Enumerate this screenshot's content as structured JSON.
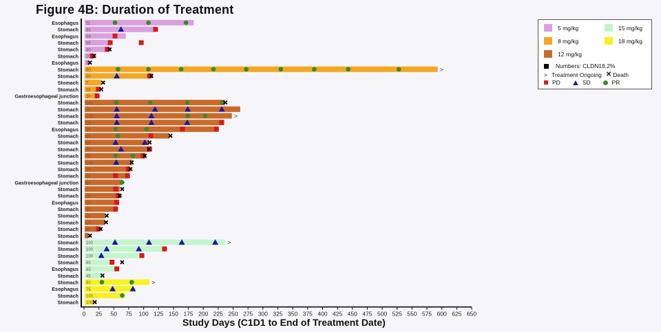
{
  "title": "Figure 4B: Duration of Treatment",
  "legend": {
    "dose_5": {
      "label": "5 mg/kg",
      "color": "#d9a0e0"
    },
    "dose_8": {
      "label": "8 mg/kg",
      "color": "#f5a623"
    },
    "dose_12": {
      "label": "12 mg/kg",
      "color": "#c96a2a"
    },
    "dose_15": {
      "label": "15 mg/kg",
      "color": "#c4f5cc"
    },
    "dose_18": {
      "label": "18 mg/kg",
      "color": "#f7f21f"
    },
    "numbers": "Numbers: CLDN18.2%",
    "ongoing": "Treatment Ongoing",
    "death": "Death",
    "pd": "PD",
    "sd": "SD",
    "pr": "PR",
    "ongoing_symbol": ">",
    "pd_color": "#d7191c",
    "sd_color": "#1a1aa6",
    "pr_color": "#3a8a2a"
  },
  "chart_data": {
    "type": "bar",
    "title": "Figure 4B: Duration of Treatment",
    "xlabel": "Study Days (C1D1 to End of Treatment Date)",
    "ylabel": "",
    "xlim": [
      0,
      650
    ],
    "xticks": [
      0,
      25,
      50,
      75,
      100,
      125,
      150,
      175,
      200,
      225,
      250,
      275,
      300,
      325,
      350,
      375,
      400,
      425,
      450,
      475,
      500,
      525,
      550,
      575,
      600,
      625,
      650
    ],
    "orientation": "horizontal swimmer plot",
    "legend_position": "upper right",
    "grid": false,
    "rows": [
      {
        "site": "Esophagus",
        "cldn": "11",
        "dose": "5",
        "end": 184,
        "ongoing": false,
        "pr": [
          52,
          108,
          171
        ],
        "sd": [],
        "pd": [],
        "death": null
      },
      {
        "site": "Stomach",
        "cldn": "95",
        "dose": "5",
        "end": 121,
        "ongoing": false,
        "pr": [],
        "sd": [
          62
        ],
        "pd": [
          120
        ],
        "death": null
      },
      {
        "site": "Esophagus",
        "cldn": "99",
        "dose": "5",
        "end": 70,
        "ongoing": false,
        "pr": [],
        "sd": [],
        "pd": [
          52
        ],
        "death": null
      },
      {
        "site": "Stomach",
        "cldn": "55",
        "dose": "5",
        "end": 45,
        "ongoing": false,
        "pr": [],
        "sd": [],
        "pd": [
          44,
          96
        ],
        "death": null
      },
      {
        "site": "Stomach",
        "cldn": "90",
        "dose": "5",
        "end": 42,
        "ongoing": false,
        "pr": [],
        "sd": [],
        "pd": [
          39
        ],
        "death": 43
      },
      {
        "site": "Stomach",
        "cldn": "25",
        "dose": "5",
        "end": 15,
        "ongoing": false,
        "pr": [],
        "sd": [],
        "pd": [
          14
        ],
        "death": 17
      },
      {
        "site": "Esophagus",
        "cldn": "99",
        "dose": "5",
        "end": 9,
        "ongoing": false,
        "pr": [],
        "sd": [],
        "pd": [],
        "death": 10
      },
      {
        "site": "Stomach",
        "cldn": "50",
        "dose": "8",
        "end": 593,
        "ongoing": true,
        "pr": [
          57,
          108,
          163,
          217,
          272,
          330,
          386,
          443,
          528
        ],
        "sd": [],
        "pd": [],
        "death": null
      },
      {
        "site": "Stomach",
        "cldn": "20",
        "dose": "8",
        "end": 112,
        "ongoing": false,
        "pr": [],
        "sd": [
          55
        ],
        "pd": [
          110
        ],
        "death": 113
      },
      {
        "site": "Stomach",
        "cldn": "7",
        "dose": "8",
        "end": 29,
        "ongoing": false,
        "pr": [],
        "sd": [],
        "pd": [],
        "death": 32
      },
      {
        "site": "Stomach",
        "cldn": "55",
        "dose": "8",
        "end": 25,
        "ongoing": false,
        "pr": [],
        "sd": [],
        "pd": [
          24
        ],
        "death": 29
      },
      {
        "site": "Gastroesophageal junction",
        "cldn": "30",
        "dose": "8",
        "end": 23,
        "ongoing": false,
        "pr": [],
        "sd": [],
        "pd": [
          22
        ],
        "death": null
      },
      {
        "site": "Stomach",
        "cldn": "100",
        "dose": "12",
        "end": 236,
        "ongoing": false,
        "pr": [
          54,
          111,
          173,
          232
        ],
        "sd": [],
        "pd": [],
        "death": 237
      },
      {
        "site": "Stomach",
        "cldn": "90",
        "dose": "12",
        "end": 262,
        "ongoing": false,
        "pr": [],
        "sd": [
          55,
          119,
          174,
          231
        ],
        "pd": [],
        "death": null
      },
      {
        "site": "Stomach",
        "cldn": "100",
        "dose": "12",
        "end": 248,
        "ongoing": true,
        "pr": [
          174,
          203
        ],
        "sd": [
          55,
          113
        ],
        "pd": [],
        "death": null
      },
      {
        "site": "Stomach",
        "cldn": "15",
        "dose": "12",
        "end": 234,
        "ongoing": false,
        "pr": [],
        "sd": [
          55,
          113,
          173
        ],
        "pd": [
          231
        ],
        "death": null
      },
      {
        "site": "Esophagus",
        "cldn": "75",
        "dose": "12",
        "end": 225,
        "ongoing": false,
        "pr": [
          53,
          105
        ],
        "sd": [],
        "pd": [
          165,
          222
        ],
        "death": null
      },
      {
        "site": "Stomach",
        "cldn": "95",
        "dose": "12",
        "end": 143,
        "ongoing": false,
        "pr": [
          57
        ],
        "sd": [],
        "pd": [
          112
        ],
        "death": 145
      },
      {
        "site": "Stomach",
        "cldn": "99",
        "dose": "12",
        "end": 109,
        "ongoing": false,
        "pr": [],
        "sd": [
          53,
          102
        ],
        "pd": [],
        "death": 110
      },
      {
        "site": "Stomach",
        "cldn": "90",
        "dose": "12",
        "end": 112,
        "ongoing": false,
        "pr": [],
        "sd": [
          62
        ],
        "pd": [
          110
        ],
        "death": 109
      },
      {
        "site": "Stomach",
        "cldn": "98",
        "dose": "12",
        "end": 103,
        "ongoing": false,
        "pr": [
          53,
          82
        ],
        "sd": [],
        "pd": [
          99
        ],
        "death": 102
      },
      {
        "site": "Stomach",
        "cldn": "100",
        "dose": "12",
        "end": 81,
        "ongoing": false,
        "pr": [],
        "sd": [
          54
        ],
        "pd": [],
        "death": 80
      },
      {
        "site": "Stomach",
        "cldn": "95",
        "dose": "12",
        "end": 76,
        "ongoing": false,
        "pr": [],
        "sd": [],
        "pd": [
          74
        ],
        "death": 78
      },
      {
        "site": "Stomach",
        "cldn": "95",
        "dose": "12",
        "end": 75,
        "ongoing": false,
        "pr": [],
        "sd": [],
        "pd": [
          53,
          73
        ],
        "death": null
      },
      {
        "site": "Gastroesophageal junction",
        "cldn": "50",
        "dose": "12",
        "end": 64,
        "ongoing": false,
        "pr": [
          64
        ],
        "sd": [],
        "pd": [],
        "death": null
      },
      {
        "site": "Stomach",
        "cldn": "1",
        "dose": "12",
        "end": 60,
        "ongoing": false,
        "pr": [],
        "sd": [],
        "pd": [
          53
        ],
        "death": 64
      },
      {
        "site": "Stomach",
        "cldn": "30",
        "dose": "12",
        "end": 59,
        "ongoing": false,
        "pr": [],
        "sd": [],
        "pd": [
          57
        ],
        "death": 60
      },
      {
        "site": "Esophagus",
        "cldn": "20",
        "dose": "12",
        "end": 58,
        "ongoing": false,
        "pr": [],
        "sd": [],
        "pd": [
          55
        ],
        "death": null
      },
      {
        "site": "Stomach",
        "cldn": "90",
        "dose": "12",
        "end": 55,
        "ongoing": false,
        "pr": [],
        "sd": [],
        "pd": [
          53
        ],
        "death": null
      },
      {
        "site": "Stomach",
        "cldn": "95",
        "dose": "12",
        "end": 35,
        "ongoing": false,
        "pr": [],
        "sd": [],
        "pd": [],
        "death": 38
      },
      {
        "site": "Stomach",
        "cldn": "75",
        "dose": "12",
        "end": 35,
        "ongoing": false,
        "pr": [],
        "sd": [],
        "pd": [],
        "death": 37
      },
      {
        "site": "Stomach",
        "cldn": "80",
        "dose": "12",
        "end": 25,
        "ongoing": false,
        "pr": [],
        "sd": [],
        "pd": [
          24
        ],
        "death": 28
      },
      {
        "site": "Stomach",
        "cldn": "75",
        "dose": "12",
        "end": 7,
        "ongoing": false,
        "pr": [],
        "sd": [],
        "pd": [],
        "death": 10
      },
      {
        "site": "Stomach",
        "cldn": "100",
        "dose": "15",
        "end": 237,
        "ongoing": true,
        "pr": [],
        "sd": [
          52,
          109,
          164,
          220
        ],
        "pd": [],
        "death": null
      },
      {
        "site": "Stomach",
        "cldn": "100",
        "dose": "15",
        "end": 136,
        "ongoing": false,
        "pr": [],
        "sd": [
          38,
          92
        ],
        "pd": [
          135
        ],
        "death": null
      },
      {
        "site": "Stomach",
        "cldn": "100",
        "dose": "15",
        "end": 98,
        "ongoing": false,
        "pr": [],
        "sd": [
          29
        ],
        "pd": [
          97
        ],
        "death": null
      },
      {
        "site": "Stomach",
        "cldn": "80",
        "dose": "15",
        "end": 51,
        "ongoing": false,
        "pr": [],
        "sd": [],
        "pd": [
          47
        ],
        "death": 64
      },
      {
        "site": "Esophagus",
        "cldn": "85",
        "dose": "15",
        "end": 58,
        "ongoing": false,
        "pr": [],
        "sd": [],
        "pd": [
          55
        ],
        "death": null
      },
      {
        "site": "Stomach",
        "cldn": "45",
        "dose": "15",
        "end": 32,
        "ongoing": false,
        "pr": [],
        "sd": [],
        "pd": [],
        "death": 31
      },
      {
        "site": "Stomach",
        "cldn": "90",
        "dose": "18",
        "end": 110,
        "ongoing": true,
        "pr": [
          30,
          80
        ],
        "sd": [],
        "pd": [],
        "death": null
      },
      {
        "site": "Esophagus",
        "cldn": "75",
        "dose": "18",
        "end": 82,
        "ongoing": false,
        "pr": [],
        "sd": [
          48,
          82
        ],
        "pd": [],
        "death": null
      },
      {
        "site": "Stomach",
        "cldn": "100",
        "dose": "18",
        "end": 69,
        "ongoing": false,
        "pr": [
          64
        ],
        "sd": [],
        "pd": [],
        "death": null
      },
      {
        "site": "Stomach",
        "cldn": "100",
        "dose": "18",
        "end": 17,
        "ongoing": false,
        "pr": [],
        "sd": [],
        "pd": [],
        "death": 18
      }
    ]
  }
}
